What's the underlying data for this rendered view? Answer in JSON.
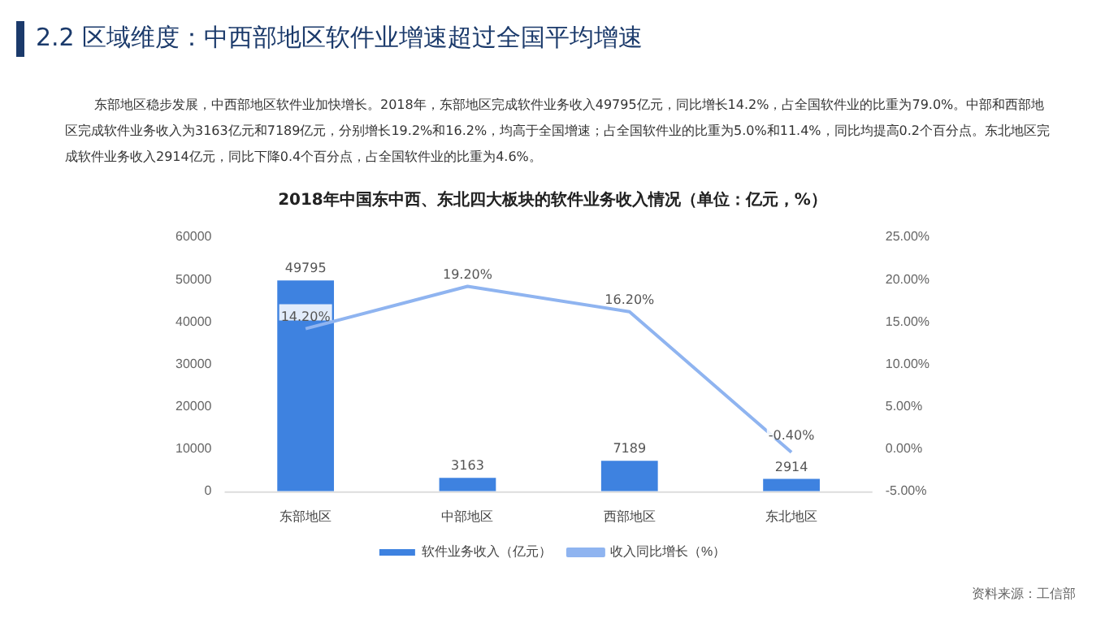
{
  "chart_data": {
    "type": "bar",
    "title": "2018年中国东中西、东北四大板块的软件业务收入情况（单位：亿元，%）",
    "annotations": [
      "2.2  区域维度：中西部地区软件业增速超过全国平均增速",
      "东部地区稳步发展，中西部地区软件业加快增长。2018年，东部地区完成软件业务收入49795亿元，同比增长14.2%，占全国软件业的比重为79.0%。中部和西部地区完成软件业务收入为3163亿元和7189亿元，分别增长19.2%和16.2%，均高于全国增速；占全国软件业的比重为5.0%和11.4%，同比均提高0.2个百分点。东北地区完成软件业务收入2914亿元，同比下降0.4个百分点，占全国软件业的比重为4.6%。",
      "资料来源：工信部"
    ],
    "categories": [
      "东部地区",
      "中部地区",
      "西部地区",
      "东北地区"
    ],
    "series": [
      {
        "name": "软件业务收入（亿元）",
        "color": "#3e82e0",
        "values": [
          49795,
          3163,
          7189,
          2914
        ],
        "value_labels": [
          "49795",
          "3163",
          "7189",
          "2914"
        ]
      },
      {
        "name": "收入同比增长（%）",
        "type": "line",
        "axis": "y2",
        "color": "#8fb4f0",
        "values": [
          14.2,
          19.2,
          16.2,
          -0.4
        ],
        "value_labels": [
          "14.20%",
          "19.20%",
          "16.20%",
          "-0.40%"
        ]
      }
    ],
    "ylim": [
      0,
      60000
    ],
    "yticks": [
      0,
      10000,
      20000,
      30000,
      40000,
      50000,
      60000
    ],
    "y2lim": [
      -5,
      25
    ],
    "y2ticks": [
      {
        "value": -5,
        "label": "-5.00%"
      },
      {
        "value": 0,
        "label": "0.00%"
      },
      {
        "value": 5,
        "label": "5.00%"
      },
      {
        "value": 10,
        "label": "10.00%"
      },
      {
        "value": 15,
        "label": "15.00%"
      },
      {
        "value": 20,
        "label": "20.00%"
      },
      {
        "value": 25,
        "label": "25.00%"
      }
    ],
    "grid": false,
    "legend": "bottom",
    "marker": "none"
  }
}
